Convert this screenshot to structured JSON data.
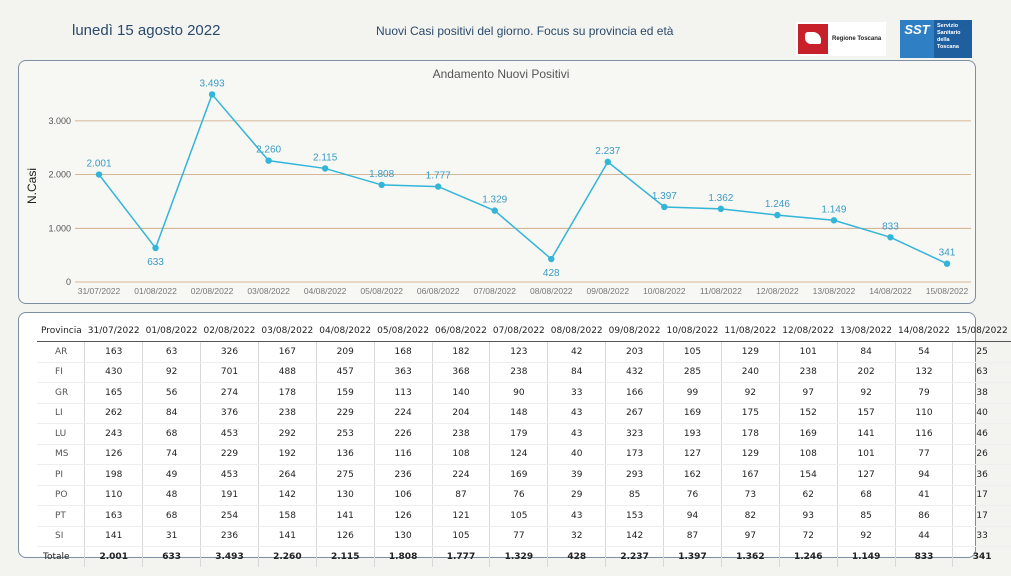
{
  "header": {
    "date": "lunedì 15 agosto 2022",
    "subtitle": "Nuovi Casi positivi del giorno. Focus su provincia ed età",
    "logo_rt_text": "Regione Toscana",
    "logo_sst_mark": "SST",
    "logo_sst_text": "Servizio Sanitario della Toscana"
  },
  "chart_data": {
    "type": "line",
    "title": "Andamento Nuovi Positivi",
    "xlabel": "",
    "ylabel": "N.Casi",
    "x": [
      "31/07/2022",
      "01/08/2022",
      "02/08/2022",
      "03/08/2022",
      "04/08/2022",
      "05/08/2022",
      "06/08/2022",
      "07/08/2022",
      "08/08/2022",
      "09/08/2022",
      "10/08/2022",
      "11/08/2022",
      "12/08/2022",
      "13/08/2022",
      "14/08/2022",
      "15/08/2022"
    ],
    "values": [
      2001,
      633,
      3493,
      2260,
      2115,
      1808,
      1777,
      1329,
      428,
      2237,
      1397,
      1362,
      1246,
      1149,
      833,
      341
    ],
    "value_labels": [
      "2.001",
      "633",
      "3.493",
      "2.260",
      "2.115",
      "1.808",
      "1.777",
      "1.329",
      "428",
      "2.237",
      "1.397",
      "1.362",
      "1.246",
      "1.149",
      "833",
      "341"
    ],
    "yticks": [
      0,
      1000,
      2000,
      3000
    ],
    "ytick_labels": [
      "0",
      "1.000",
      "2.000",
      "3.000"
    ],
    "ylim": [
      0,
      3650
    ],
    "grid": true,
    "line_color": "#33b5d8",
    "grid_color": "#c9a27a"
  },
  "table": {
    "headers": [
      "Provincia",
      "31/07/2022",
      "01/08/2022",
      "02/08/2022",
      "03/08/2022",
      "04/08/2022",
      "05/08/2022",
      "06/08/2022",
      "07/08/2022",
      "08/08/2022",
      "09/08/2022",
      "10/08/2022",
      "11/08/2022",
      "12/08/2022",
      "13/08/2022",
      "14/08/2022",
      "15/08/2022"
    ],
    "rows": [
      [
        "AR",
        "163",
        "63",
        "326",
        "167",
        "209",
        "168",
        "182",
        "123",
        "42",
        "203",
        "105",
        "129",
        "101",
        "84",
        "54",
        "25"
      ],
      [
        "FI",
        "430",
        "92",
        "701",
        "488",
        "457",
        "363",
        "368",
        "238",
        "84",
        "432",
        "285",
        "240",
        "238",
        "202",
        "132",
        "63"
      ],
      [
        "GR",
        "165",
        "56",
        "274",
        "178",
        "159",
        "113",
        "140",
        "90",
        "33",
        "166",
        "99",
        "92",
        "97",
        "92",
        "79",
        "38"
      ],
      [
        "LI",
        "262",
        "84",
        "376",
        "238",
        "229",
        "224",
        "204",
        "148",
        "43",
        "267",
        "169",
        "175",
        "152",
        "157",
        "110",
        "40"
      ],
      [
        "LU",
        "243",
        "68",
        "453",
        "292",
        "253",
        "226",
        "238",
        "179",
        "43",
        "323",
        "193",
        "178",
        "169",
        "141",
        "116",
        "46"
      ],
      [
        "MS",
        "126",
        "74",
        "229",
        "192",
        "136",
        "116",
        "108",
        "124",
        "40",
        "173",
        "127",
        "129",
        "108",
        "101",
        "77",
        "26"
      ],
      [
        "PI",
        "198",
        "49",
        "453",
        "264",
        "275",
        "236",
        "224",
        "169",
        "39",
        "293",
        "162",
        "167",
        "154",
        "127",
        "94",
        "36"
      ],
      [
        "PO",
        "110",
        "48",
        "191",
        "142",
        "130",
        "106",
        "87",
        "76",
        "29",
        "85",
        "76",
        "73",
        "62",
        "68",
        "41",
        "17"
      ],
      [
        "PT",
        "163",
        "68",
        "254",
        "158",
        "141",
        "126",
        "121",
        "105",
        "43",
        "153",
        "94",
        "82",
        "93",
        "85",
        "86",
        "17"
      ],
      [
        "SI",
        "141",
        "31",
        "236",
        "141",
        "126",
        "130",
        "105",
        "77",
        "32",
        "142",
        "87",
        "97",
        "72",
        "92",
        "44",
        "33"
      ]
    ],
    "total": [
      "Totale",
      "2.001",
      "633",
      "3.493",
      "2.260",
      "2.115",
      "1.808",
      "1.777",
      "1.329",
      "428",
      "2.237",
      "1.397",
      "1.362",
      "1.246",
      "1.149",
      "833",
      "341"
    ]
  }
}
